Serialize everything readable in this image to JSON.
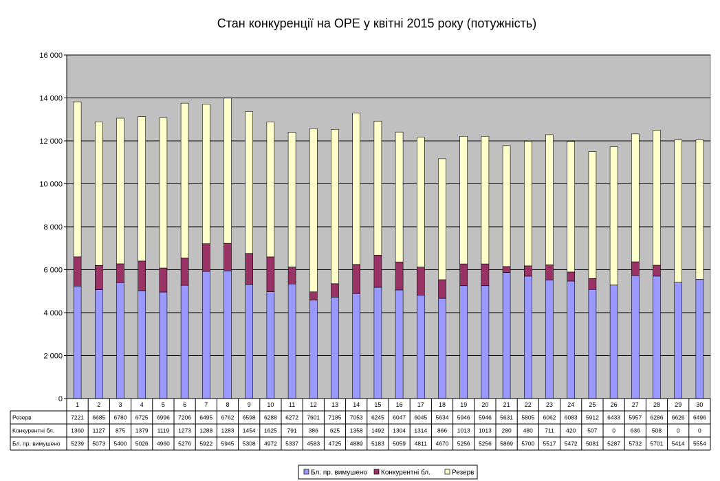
{
  "chart_data": {
    "type": "bar",
    "stacked": true,
    "title": "Стан конкуренції на ОРЕ  у квітні 2015 року (потужність)",
    "categories": [
      "1",
      "2",
      "3",
      "4",
      "5",
      "6",
      "7",
      "8",
      "9",
      "10",
      "11",
      "12",
      "13",
      "14",
      "15",
      "16",
      "17",
      "18",
      "19",
      "20",
      "21",
      "22",
      "23",
      "24",
      "25",
      "26",
      "27",
      "28",
      "29",
      "30"
    ],
    "ylim": [
      0,
      16000
    ],
    "yticks": [
      0,
      2000,
      4000,
      6000,
      8000,
      10000,
      12000,
      14000,
      16000
    ],
    "ytick_labels": [
      "0",
      "2 000",
      "4 000",
      "6 000",
      "8 000",
      "10 000",
      "12 000",
      "14 000",
      "16 000"
    ],
    "grid": true,
    "legend_position": "bottom",
    "colors": {
      "plot_bg": "#c0c0c0",
      "forced": "#9999ff",
      "competitive": "#993366",
      "reserve": "#ffffcc"
    },
    "series": [
      {
        "name": "Бл. пр. вимушено",
        "color": "#9999ff",
        "values": [
          5239,
          5073,
          5400,
          5026,
          4960,
          5276,
          5922,
          5945,
          5308,
          4972,
          5337,
          4583,
          4725,
          4889,
          5183,
          5059,
          4811,
          4670,
          5256,
          5256,
          5869,
          5700,
          5517,
          5472,
          5081,
          5287,
          5732,
          5701,
          5414,
          5554
        ]
      },
      {
        "name": "Конкурентні бл.",
        "color": "#993366",
        "values": [
          1360,
          1127,
          875,
          1379,
          1119,
          1273,
          1288,
          1283,
          1454,
          1625,
          791,
          386,
          625,
          1358,
          1492,
          1304,
          1314,
          866,
          1013,
          1013,
          280,
          480,
          711,
          420,
          507,
          0,
          636,
          508,
          0,
          0
        ]
      },
      {
        "name": "Резерв",
        "color": "#ffffcc",
        "values": [
          7221,
          6685,
          6780,
          6725,
          6996,
          7206,
          6495,
          6762,
          6598,
          6288,
          6272,
          7601,
          7185,
          7053,
          6245,
          6047,
          6045,
          5634,
          5946,
          5946,
          5631,
          5805,
          6062,
          6083,
          5912,
          6433,
          5957,
          6286,
          6626,
          6496
        ]
      }
    ],
    "table_rows": [
      {
        "label": "Резерв",
        "series_index": 2
      },
      {
        "label": "Конкурентні бл.",
        "series_index": 1
      },
      {
        "label": "Бл. пр. вимушено",
        "series_index": 0
      }
    ],
    "legend": [
      "Бл. пр. вимушено",
      "Конкурентні бл.",
      "Резерв"
    ]
  }
}
